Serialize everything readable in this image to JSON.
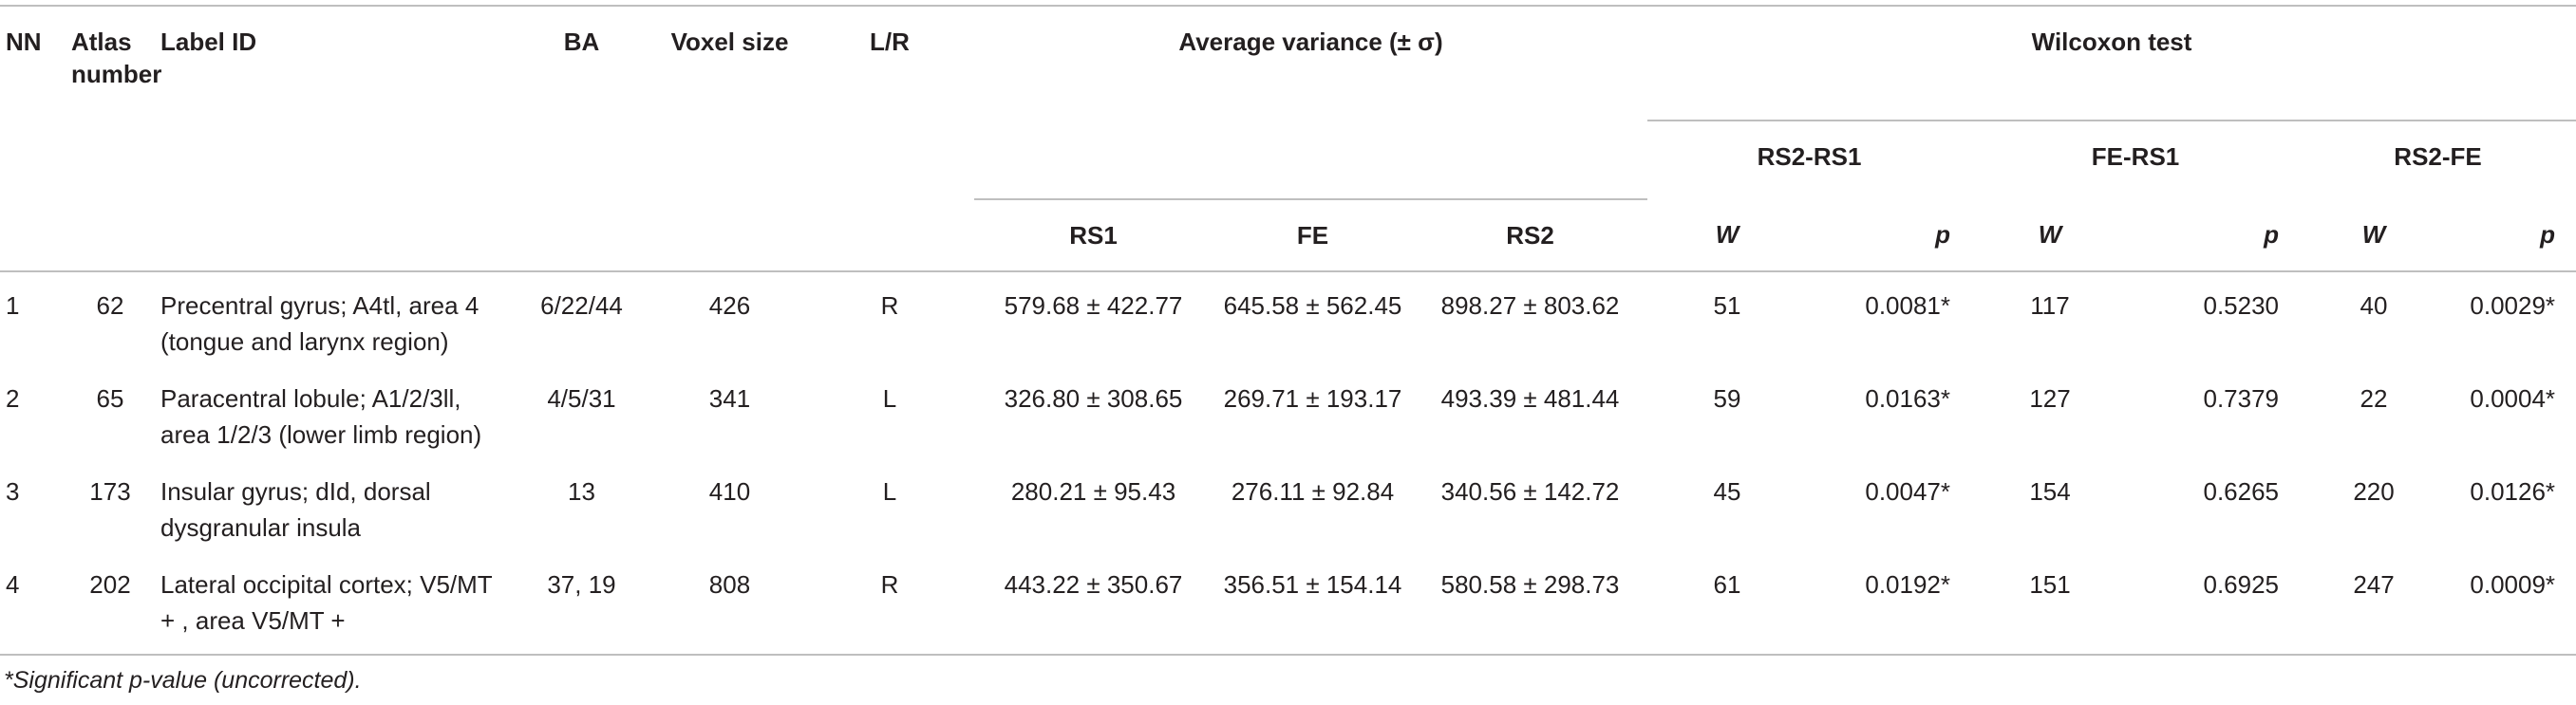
{
  "table": {
    "header": {
      "nn": "NN",
      "atlas": "Atlas number",
      "label": "Label ID",
      "ba": "BA",
      "voxel": "Voxel size",
      "lr": "L/R",
      "avg": "Average variance (± σ)",
      "wilcoxon": "Wilcoxon test",
      "groups": [
        "RS2-RS1",
        "FE-RS1",
        "RS2-FE"
      ],
      "columns": [
        "RS1",
        "FE",
        "RS2",
        "W",
        "p",
        "W",
        "p",
        "W",
        "p"
      ]
    },
    "rows": [
      [
        "1",
        "62",
        "Precentral gyrus; A4tl, area 4 (tongue and larynx region)",
        "6/22/44",
        "426",
        "R",
        "579.68 ± 422.77",
        "645.58 ± 562.45",
        "898.27 ± 803.62",
        "51",
        "0.0081*",
        "117",
        "0.5230",
        "40",
        "0.0029*"
      ],
      [
        "2",
        "65",
        "Paracentral lobule; A1/2/3ll, area 1/2/3 (lower limb region)",
        "4/5/31",
        "341",
        "L",
        "326.80 ± 308.65",
        "269.71 ± 193.17",
        "493.39 ± 481.44",
        "59",
        "0.0163*",
        "127",
        "0.7379",
        "22",
        "0.0004*"
      ],
      [
        "3",
        "173",
        "Insular gyrus; dId, dorsal dysgranular insula",
        "13",
        "410",
        "L",
        "280.21 ± 95.43",
        "276.11 ± 92.84",
        "340.56 ± 142.72",
        "45",
        "0.0047*",
        "154",
        "0.6265",
        "220",
        "0.0126*"
      ],
      [
        "4",
        "202",
        "Lateral occipital cortex; V5/MT + , area V5/MT +",
        "37, 19",
        "808",
        "R",
        "443.22 ± 350.67",
        "356.51 ± 154.14",
        "580.58 ± 298.73",
        "61",
        "0.0192*",
        "151",
        "0.6925",
        "247",
        "0.0009*"
      ]
    ]
  },
  "footnote": "*Significant p-value (uncorrected)."
}
